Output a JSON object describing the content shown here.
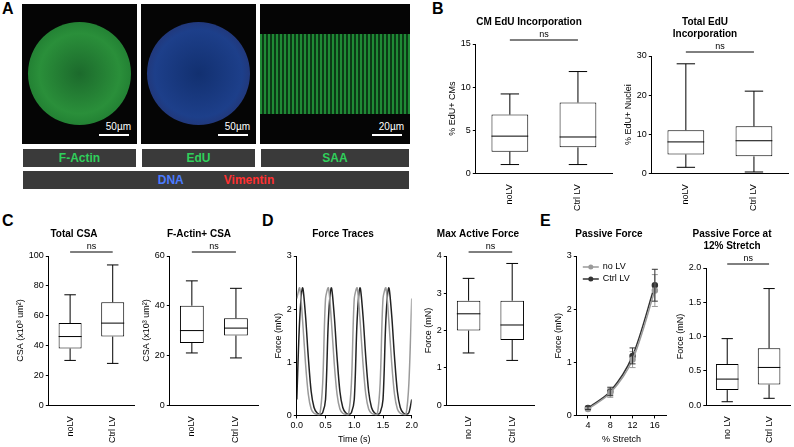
{
  "panel_labels": [
    "A",
    "B",
    "C",
    "D",
    "E"
  ],
  "panel_a": {
    "scale_bars": [
      "50µm",
      "50µm",
      "20µm"
    ],
    "labels": [
      {
        "text": "F-Actin",
        "color": "#2fd05a"
      },
      {
        "text": "EdU",
        "color": "#2fd05a"
      },
      {
        "text": "SAA",
        "color": "#2fd05a"
      }
    ],
    "shared_labels": [
      {
        "text": "DNA",
        "color": "#4a7bff"
      },
      {
        "text": "Vimentin",
        "color": "#ff3030"
      }
    ]
  },
  "chart_data": [
    {
      "type": "box",
      "title": "CM EdU Incorporation",
      "y_label": "% EdU+ CMs",
      "categories": [
        "noLV",
        "Ctrl LV"
      ],
      "boxes": [
        {
          "min": 1,
          "q1": 2.5,
          "median": 4.3,
          "q3": 6.8,
          "max": 9.2
        },
        {
          "min": 1,
          "q1": 3,
          "median": 4.2,
          "q3": 8.2,
          "max": 11.8
        }
      ],
      "color": "#000000",
      "ylim": [
        0,
        15
      ],
      "yticks": [
        0,
        5,
        10,
        15
      ],
      "grid": false,
      "annotation": "ns"
    },
    {
      "type": "box",
      "title": "Total EdU Incorporation",
      "y_label": "% EdU+ Nuclei",
      "categories": [
        "noLV",
        "Ctrl LV"
      ],
      "boxes": [
        {
          "min": 1.5,
          "q1": 4.8,
          "median": 8,
          "q3": 11,
          "max": 28
        },
        {
          "min": 0.3,
          "q1": 4.3,
          "median": 8.3,
          "q3": 12,
          "max": 21
        }
      ],
      "color": "#000000",
      "ylim": [
        0,
        30
      ],
      "yticks": [
        0,
        10,
        20,
        30
      ],
      "grid": false,
      "annotation": "ns"
    },
    {
      "type": "box",
      "title": "Total CSA",
      "y_label": "CSA (x10³ um²)",
      "categories": [
        "noLV",
        "Ctrl LV"
      ],
      "boxes": [
        {
          "min": 30,
          "q1": 38,
          "median": 46,
          "q3": 55,
          "max": 74
        },
        {
          "min": 28,
          "q1": 46,
          "median": 55,
          "q3": 69,
          "max": 94
        }
      ],
      "color": "#000000",
      "ylim": [
        0,
        100
      ],
      "yticks": [
        0,
        20,
        40,
        60,
        80,
        100
      ],
      "grid": false,
      "annotation": "ns"
    },
    {
      "type": "box",
      "title": "F-Actin+ CSA",
      "y_label": "CSA (x10³ um²)",
      "categories": [
        "noLV",
        "Ctrl LV"
      ],
      "boxes": [
        {
          "min": 21,
          "q1": 25,
          "median": 30,
          "q3": 40,
          "max": 50
        },
        {
          "min": 19,
          "q1": 28,
          "median": 31,
          "q3": 35,
          "max": 47
        }
      ],
      "color": "#000000",
      "ylim": [
        0,
        60
      ],
      "yticks": [
        0,
        20,
        40,
        60
      ],
      "grid": false,
      "annotation": "ns"
    },
    {
      "type": "line",
      "title": "Force Traces",
      "x_label": "Time (s)",
      "y_label": "Force (mN)",
      "x": [
        0,
        0.05,
        0.1,
        0.15,
        0.2,
        0.25,
        0.3,
        0.35,
        0.4,
        0.45,
        0.5,
        0.55,
        0.6,
        0.65,
        0.7,
        0.75,
        0.8,
        0.85,
        0.9,
        0.95,
        1,
        1.05,
        1.1,
        1.15,
        1.2,
        1.25,
        1.3,
        1.35,
        1.4,
        1.45,
        1.5,
        1.55,
        1.6,
        1.65,
        1.7,
        1.75,
        1.8,
        1.85,
        1.9,
        1.95,
        2
      ],
      "series": [
        {
          "color": "#9a9a9a",
          "values": [
            2.2,
            2.4,
            1.8,
            1.0,
            0.4,
            0.12,
            0.04,
            0.02,
            0.02,
            0.6,
            2.2,
            2.4,
            1.8,
            1.0,
            0.4,
            0.12,
            0.04,
            0.02,
            0.02,
            0.6,
            2.2,
            2.4,
            1.8,
            1.0,
            0.4,
            0.12,
            0.04,
            0.02,
            0.02,
            0.6,
            2.2,
            2.4,
            1.8,
            1.0,
            0.4,
            0.12,
            0.04,
            0.02,
            0.02,
            0.6,
            2.2
          ]
        },
        {
          "color": "#222222",
          "values": [
            0.3,
            1.8,
            2.4,
            1.9,
            1.1,
            0.45,
            0.15,
            0.05,
            0.02,
            0.05,
            0.3,
            1.8,
            2.4,
            1.9,
            1.1,
            0.45,
            0.15,
            0.05,
            0.02,
            0.05,
            0.3,
            1.8,
            2.4,
            1.9,
            1.1,
            0.45,
            0.15,
            0.05,
            0.02,
            0.05,
            0.3,
            1.8,
            2.4,
            1.9,
            1.1,
            0.45,
            0.15,
            0.05,
            0.02,
            0.05,
            0.3
          ]
        }
      ],
      "xlim": [
        0,
        2
      ],
      "xticks": [
        {
          "value": 0,
          "label": "0.0"
        },
        0.5,
        {
          "value": 1,
          "label": "1.0"
        },
        1.5,
        {
          "value": 2,
          "label": "2.0"
        }
      ],
      "ylim": [
        0,
        3
      ],
      "yticks": [
        0,
        1,
        2,
        3
      ],
      "grid": false
    },
    {
      "type": "box",
      "title": "Max Active Force",
      "y_label": "Force (mN)",
      "categories": [
        "no LV",
        "Ctrl LV"
      ],
      "boxes": [
        {
          "min": 1.4,
          "q1": 2.0,
          "median": 2.45,
          "q3": 2.8,
          "max": 3.4
        },
        {
          "min": 1.2,
          "q1": 1.75,
          "median": 2.15,
          "q3": 2.8,
          "max": 3.8
        }
      ],
      "color": "#000000",
      "ylim": [
        0,
        4
      ],
      "yticks": [
        0,
        1,
        2,
        3,
        4
      ],
      "grid": false,
      "annotation": "ns"
    },
    {
      "type": "line",
      "title": "Passive Force",
      "x_label": "% Stretch",
      "y_label": "Force (mN)",
      "x": [
        4,
        8,
        12,
        16
      ],
      "series": [
        {
          "name": "no LV",
          "color": "#9a9a9a",
          "marker": "circle",
          "values": [
            0.12,
            0.42,
            1.05,
            2.35
          ],
          "error": [
            0.03,
            0.08,
            0.15,
            0.3
          ]
        },
        {
          "name": "Ctrl LV",
          "color": "#333333",
          "marker": "circle",
          "values": [
            0.14,
            0.45,
            1.12,
            2.45
          ],
          "error": [
            0.03,
            0.08,
            0.15,
            0.3
          ]
        }
      ],
      "xlim": [
        2,
        18
      ],
      "xticks": [
        4,
        8,
        12,
        16
      ],
      "ylim": [
        0,
        3
      ],
      "yticks": [
        0,
        1,
        2,
        3
      ],
      "grid": false,
      "legend": "top-left"
    },
    {
      "type": "box",
      "title": "Passive Force at 12% Stretch",
      "y_label": "Force (mN)",
      "categories": [
        "no LV",
        "Ctrl LV"
      ],
      "boxes": [
        {
          "min": 0.05,
          "q1": 0.22,
          "median": 0.38,
          "q3": 0.6,
          "max": 0.97
        },
        {
          "min": 0.1,
          "q1": 0.3,
          "median": 0.55,
          "q3": 0.83,
          "max": 1.7
        }
      ],
      "color": "#000000",
      "ylim": [
        0,
        2
      ],
      "yticks": [
        {
          "value": 0,
          "label": "0.0"
        },
        0.5,
        {
          "value": 1,
          "label": "1.0"
        },
        1.5,
        {
          "value": 2,
          "label": "2.0"
        }
      ],
      "grid": false,
      "annotation": "ns"
    }
  ]
}
